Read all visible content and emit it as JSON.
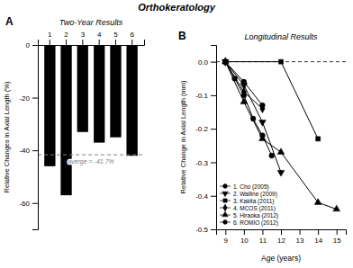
{
  "title": "Orthokeratology",
  "chart_data": [
    {
      "type": "bar",
      "title": "Two-Year Results",
      "panel_label": "A",
      "categories": [
        "1",
        "2",
        "3",
        "4",
        "5",
        "6"
      ],
      "values": [
        -46,
        -57,
        -33,
        -37,
        -35,
        -42
      ],
      "color": "#000000",
      "ylabel": "Relative Changes in Axial Length (%)",
      "ylim": [
        -70,
        0
      ],
      "yticks": [
        0,
        -20,
        -40,
        -60
      ],
      "annotations": [
        {
          "text": "averge = -41.7%",
          "y": -41.7
        }
      ]
    },
    {
      "type": "line",
      "title": "Longitudinal Results",
      "panel_label": "B",
      "xlabel": "Age (years)",
      "ylabel": "Relative Change in Axial Length (mm)",
      "xlim": [
        8.5,
        15.5
      ],
      "ylim": [
        -0.5,
        0.05
      ],
      "xticks": [
        9,
        10,
        11,
        12,
        13,
        14,
        15
      ],
      "yticks": [
        {
          "value": 0.0,
          "label": "0.0"
        },
        -0.1,
        -0.2,
        -0.3,
        -0.4,
        -0.5
      ],
      "legend": "lower-left",
      "annotations": [
        {
          "y": 0.0
        }
      ],
      "series": [
        {
          "name": "1. Cho (2005)",
          "color": "#000000",
          "marker": "circle",
          "x": [
            9,
            9.5,
            10,
            10.5,
            11,
            11.5
          ],
          "values": [
            0.0,
            -0.05,
            -0.1,
            -0.17,
            -0.22,
            -0.28
          ]
        },
        {
          "name": "2. Walline (2009)",
          "color": "#000000",
          "marker": "triangle-down",
          "x": [
            9,
            10,
            11,
            12
          ],
          "values": [
            0.0,
            -0.07,
            -0.18,
            -0.33
          ]
        },
        {
          "name": "3. Kakita (2011)",
          "color": "#000000",
          "marker": "square",
          "x": [
            9,
            12,
            14
          ],
          "values": [
            0.0,
            0.0,
            -0.23
          ]
        },
        {
          "name": "4. MCOS (2011)",
          "color": "#000000",
          "marker": "diamond",
          "x": [
            9,
            10,
            11
          ],
          "values": [
            0.0,
            -0.09,
            -0.14
          ]
        },
        {
          "name": "5. Hiraoka (2012)",
          "color": "#000000",
          "marker": "triangle-up",
          "x": [
            9,
            10,
            11,
            12,
            14,
            15
          ],
          "values": [
            0.0,
            -0.12,
            -0.23,
            -0.27,
            -0.42,
            -0.44
          ]
        },
        {
          "name": "6. ROMIO (2012)",
          "color": "#000000",
          "marker": "circle",
          "x": [
            9,
            10,
            11
          ],
          "values": [
            0.0,
            -0.06,
            -0.13
          ]
        }
      ]
    }
  ]
}
